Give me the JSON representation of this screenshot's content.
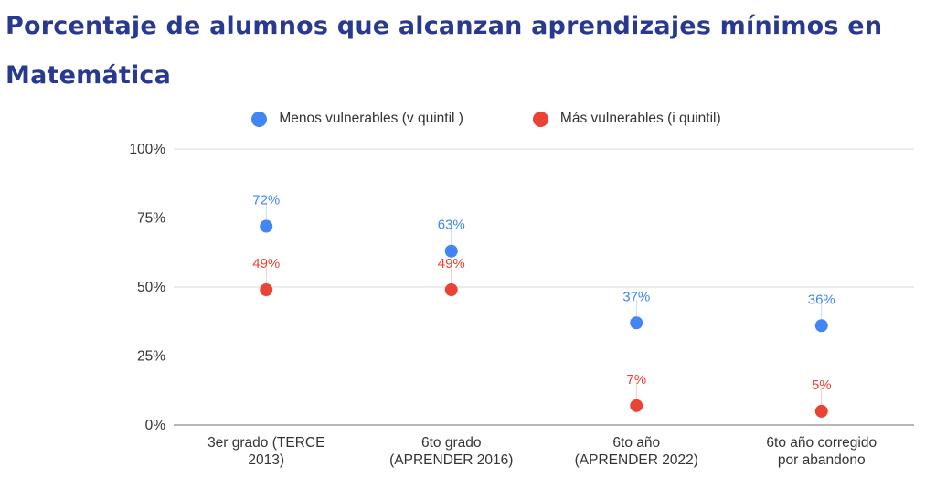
{
  "slide": {
    "title": "Porcentaje de alumnos que alcanzan aprendizajes mínimos en Matemática"
  },
  "colors": {
    "title": "#2a3990",
    "series_1": "#4285f4",
    "series_2": "#ea4335",
    "grid": "#d9d9d9",
    "text": "#333333"
  },
  "chart_data": {
    "type": "scatter",
    "title": "",
    "xlabel": "",
    "ylabel": "",
    "ylim": [
      0,
      100
    ],
    "yticks": [
      "0%",
      "25%",
      "50%",
      "75%",
      "100%"
    ],
    "ytick_values": [
      0,
      25,
      50,
      75,
      100
    ],
    "grid": true,
    "legend_position": "top-center",
    "categories": [
      [
        "3er grado (TERCE",
        "2013)"
      ],
      [
        "6to grado",
        "(APRENDER 2016)"
      ],
      [
        "6to año",
        "(APRENDER 2022)"
      ],
      [
        "6to año corregido",
        "por abandono"
      ]
    ],
    "series": [
      {
        "name": "Menos vulnerables (v quintil )",
        "color": "#4285f4",
        "values": [
          72,
          63,
          37,
          36
        ],
        "labels": [
          "72%",
          "63%",
          "37%",
          "36%"
        ]
      },
      {
        "name": "Más vulnerables (i quintil)",
        "color": "#ea4335",
        "values": [
          49,
          49,
          7,
          5
        ],
        "labels": [
          "49%",
          "49%",
          "7%",
          "5%"
        ]
      }
    ]
  }
}
